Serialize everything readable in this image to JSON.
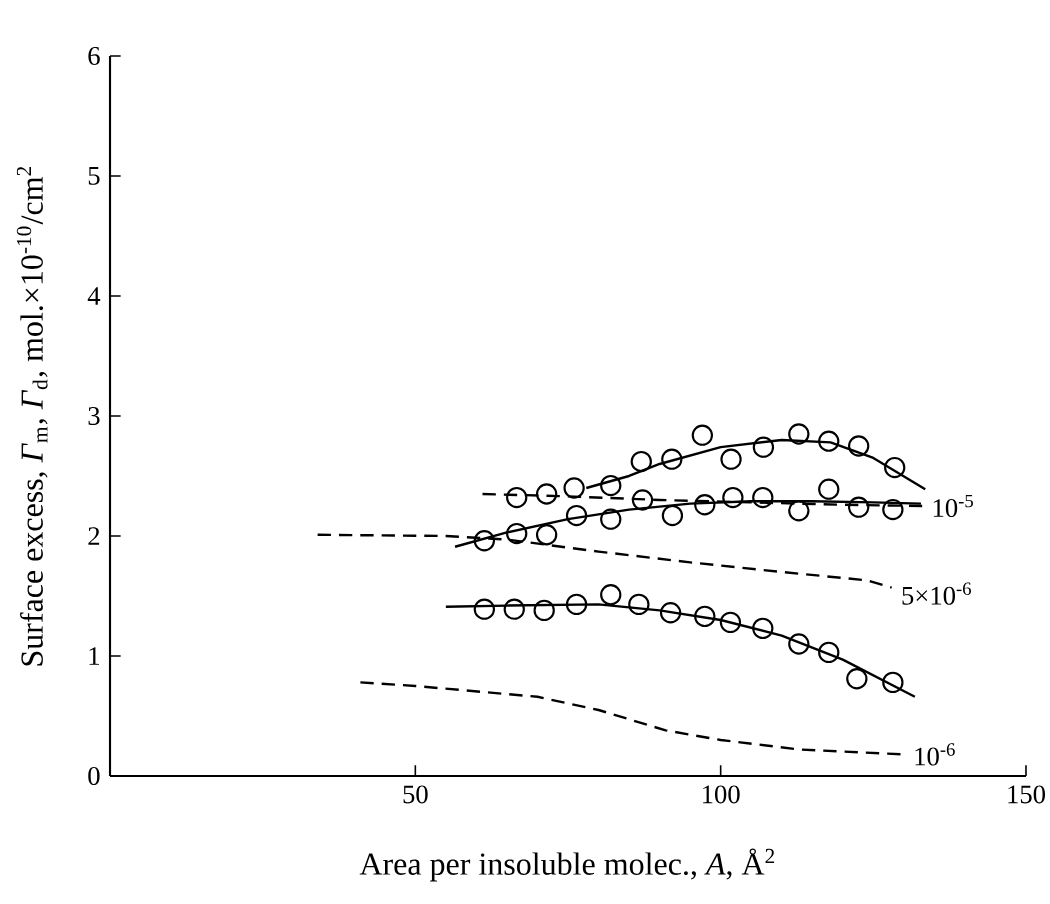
{
  "chart_data": {
    "type": "scatter",
    "xlabel": "Area per insoluble molec., *A*, Å$^{2}$",
    "ylabel": "Surface excess, *Γ*$_{m}$, *Γ*$_{d}$, mol.×10$^{-10}$/cm$^{2}$",
    "xlim": [
      0,
      150
    ],
    "ylim": [
      0,
      6
    ],
    "xticks": [
      {
        "value": 0,
        "label": null
      },
      50,
      100,
      150
    ],
    "yticks": [
      0,
      1,
      2,
      3,
      4,
      5,
      6
    ],
    "series": [
      {
        "marker": "circle",
        "color": "#000000",
        "x": [
          66.6,
          71.5,
          76,
          82,
          87,
          92,
          97,
          101.7,
          107,
          112.8,
          117.7,
          122.6,
          128.5
        ],
        "values": [
          2.32,
          2.35,
          2.4,
          2.42,
          2.62,
          2.64,
          2.84,
          2.64,
          2.74,
          2.85,
          2.79,
          2.75,
          2.57
        ]
      },
      {
        "marker": "circle",
        "color": "#000000",
        "x": [
          61.3,
          66.6,
          71.5,
          76.4,
          82,
          87.2,
          92.1,
          97.4,
          102,
          106.9,
          112.8,
          117.7,
          122.6,
          128.2
        ],
        "values": [
          1.96,
          2.02,
          2.01,
          2.17,
          2.14,
          2.3,
          2.17,
          2.26,
          2.32,
          2.32,
          2.21,
          2.39,
          2.24,
          2.22
        ]
      },
      {
        "marker": "circle",
        "color": "#000000",
        "x": [
          61.3,
          66.2,
          71.1,
          76.4,
          82,
          86.6,
          91.8,
          97.4,
          101.6,
          106.9,
          112.8,
          117.7,
          122.3,
          128.2
        ],
        "values": [
          1.39,
          1.39,
          1.38,
          1.43,
          1.51,
          1.43,
          1.36,
          1.33,
          1.28,
          1.23,
          1.1,
          1.03,
          0.81,
          0.78
        ]
      },
      {
        "type": "line",
        "marker": "none",
        "line_style": "solid",
        "color": "#000000",
        "x": [
          78,
          85,
          90,
          100,
          110,
          118,
          125,
          133.5
        ],
        "values": [
          2.4,
          2.5,
          2.6,
          2.74,
          2.8,
          2.78,
          2.65,
          2.39
        ]
      },
      {
        "type": "line",
        "marker": "none",
        "line_style": "solid",
        "color": "#000000",
        "x": [
          56.5,
          65,
          75,
          85,
          95,
          105,
          115,
          125,
          132.8
        ],
        "values": [
          1.91,
          2.03,
          2.14,
          2.22,
          2.27,
          2.29,
          2.29,
          2.28,
          2.27
        ]
      },
      {
        "type": "line",
        "marker": "none",
        "line_style": "solid",
        "color": "#000000",
        "x": [
          55,
          65,
          80,
          90,
          100,
          110,
          120,
          131.8
        ],
        "values": [
          1.41,
          1.42,
          1.43,
          1.38,
          1.3,
          1.17,
          0.97,
          0.66
        ]
      },
      {
        "type": "line",
        "marker": "none",
        "line_style": "dashed",
        "color": "#000000",
        "x": [
          61,
          75,
          90,
          105,
          120,
          133
        ],
        "values": [
          2.35,
          2.33,
          2.3,
          2.28,
          2.26,
          2.25
        ]
      },
      {
        "type": "line",
        "marker": "none",
        "line_style": "dashed",
        "color": "#000000",
        "x": [
          34,
          55,
          65,
          80,
          95,
          110,
          124,
          128
        ],
        "values": [
          2.01,
          2.0,
          1.97,
          1.87,
          1.78,
          1.7,
          1.63,
          1.57
        ]
      },
      {
        "type": "line",
        "marker": "none",
        "line_style": "dashed",
        "color": "#000000",
        "x": [
          41,
          50,
          70,
          80,
          91,
          100,
          113,
          130
        ],
        "values": [
          0.78,
          0.75,
          0.66,
          0.55,
          0.38,
          0.3,
          0.22,
          0.18
        ]
      }
    ],
    "annotations": [
      {
        "text": "10$^{-5}$",
        "x": 134,
        "y": 2.25
      },
      {
        "text": "5×10$^{-6}$",
        "x": 129,
        "y": 1.52
      },
      {
        "text": "10$^{-6}$",
        "x": 131,
        "y": 0.18
      }
    ]
  }
}
